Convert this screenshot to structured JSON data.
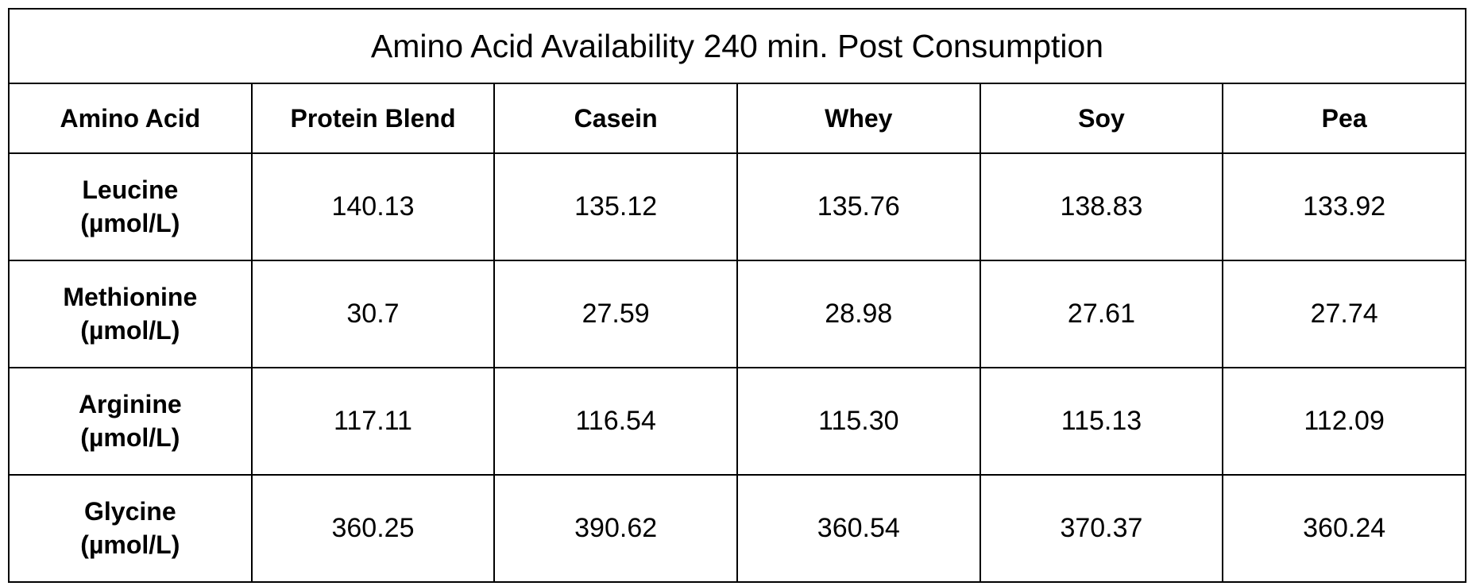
{
  "table": {
    "title": "Amino Acid Availability 240 min. Post Consumption",
    "columns": [
      "Amino Acid",
      "Protein Blend",
      "Casein",
      "Whey",
      "Soy",
      "Pea"
    ],
    "rows": [
      {
        "amino_acid": "Leucine",
        "unit": "(µmol/L)",
        "values": [
          "140.13",
          "135.12",
          "135.76",
          "138.83",
          "133.92"
        ]
      },
      {
        "amino_acid": "Methionine",
        "unit": "(µmol/L)",
        "values": [
          "30.7",
          "27.59",
          "28.98",
          "27.61",
          "27.74"
        ]
      },
      {
        "amino_acid": "Arginine",
        "unit": "(µmol/L)",
        "values": [
          "117.11",
          "116.54",
          "115.30",
          "115.13",
          "112.09"
        ]
      },
      {
        "amino_acid": "Glycine",
        "unit": "(µmol/L)",
        "values": [
          "360.25",
          "390.62",
          "360.54",
          "370.37",
          "360.24"
        ]
      }
    ]
  }
}
